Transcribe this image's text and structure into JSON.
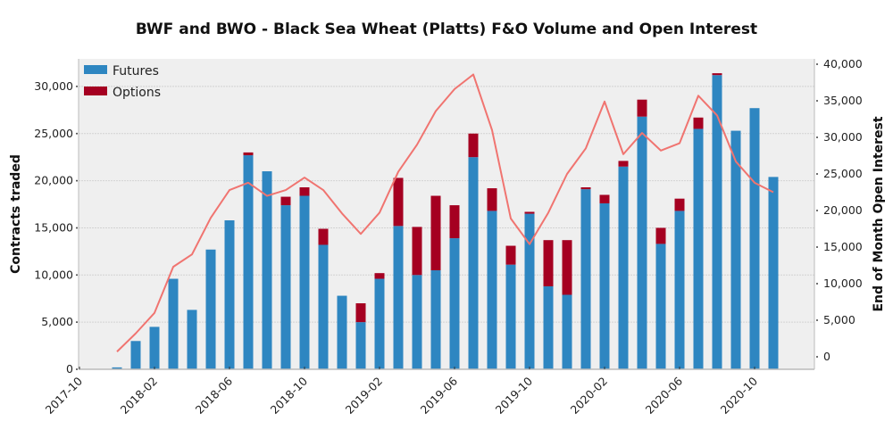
{
  "chart_data": {
    "type": "bar",
    "title": "BWF and BWO - Black Sea Wheat (Platts) F&O Volume and Open Interest",
    "xlabel": "",
    "ylabel": "Contracts traded",
    "y2label": "End of Month Open Interest",
    "ylim": [
      0,
      32500
    ],
    "y2lim": [
      -1500,
      40000
    ],
    "grid": true,
    "legend": "top-left",
    "stacked": true,
    "x_tick_labels": [
      "2017-10",
      "2018-02",
      "2018-06",
      "2018-10",
      "2019-02",
      "2019-06",
      "2019-10",
      "2020-02",
      "2020-06",
      "2020-10"
    ],
    "y_ticks": [
      0,
      5000,
      10000,
      15000,
      20000,
      25000,
      30000
    ],
    "y_tick_labels": [
      "0",
      "5,000",
      "10,000",
      "15,000",
      "20,000",
      "25,000",
      "30,000"
    ],
    "y2_ticks": [
      0,
      5000,
      10000,
      15000,
      20000,
      25000,
      30000,
      35000,
      40000
    ],
    "y2_tick_labels": [
      "0",
      "5,000",
      "10,000",
      "15,000",
      "20,000",
      "25,000",
      "30,000",
      "35,000",
      "40,000"
    ],
    "categories": [
      "2017-12",
      "2018-01",
      "2018-02",
      "2018-03",
      "2018-04",
      "2018-05",
      "2018-06",
      "2018-07",
      "2018-08",
      "2018-09",
      "2018-10",
      "2018-11",
      "2018-12",
      "2019-01",
      "2019-02",
      "2019-03",
      "2019-04",
      "2019-05",
      "2019-06",
      "2019-07",
      "2019-08",
      "2019-09",
      "2019-10",
      "2019-11",
      "2019-12",
      "2020-01",
      "2020-02",
      "2020-03",
      "2020-04",
      "2020-05",
      "2020-06",
      "2020-07",
      "2020-08",
      "2020-09",
      "2020-10",
      "2020-11"
    ],
    "series": [
      {
        "name": "Futures",
        "type": "bar",
        "axis": "left",
        "color": "#2e86c1",
        "values": [
          200,
          3000,
          4500,
          9600,
          6300,
          12700,
          15800,
          22700,
          21000,
          17400,
          18400,
          13200,
          7800,
          5000,
          9600,
          15200,
          10000,
          10500,
          13900,
          22500,
          16800,
          11100,
          16500,
          8800,
          7900,
          19100,
          17600,
          21500,
          26800,
          13300,
          16800,
          25500,
          31200,
          25300,
          27700,
          20400
        ]
      },
      {
        "name": "Options",
        "type": "bar",
        "axis": "left",
        "color": "#a50021",
        "values": [
          0,
          0,
          0,
          0,
          0,
          0,
          0,
          300,
          0,
          900,
          900,
          1700,
          0,
          2000,
          600,
          5100,
          5100,
          7900,
          3500,
          2500,
          2400,
          2000,
          200,
          4900,
          5800,
          200,
          900,
          600,
          1800,
          1700,
          1300,
          1200,
          200,
          0,
          0,
          0
        ]
      },
      {
        "name": "End of Month Open Interest",
        "type": "line",
        "axis": "right",
        "color": "#f07470",
        "values": [
          700,
          3200,
          6000,
          12300,
          14000,
          19000,
          22800,
          23800,
          22000,
          22800,
          24500,
          22800,
          19600,
          16800,
          19700,
          25300,
          29000,
          33600,
          36600,
          38600,
          31000,
          18900,
          15400,
          19700,
          25000,
          28500,
          34900,
          27700,
          30600,
          28200,
          29200,
          35700,
          33000,
          26700,
          23800,
          22500
        ]
      }
    ]
  },
  "legend": {
    "items": [
      {
        "label": "Futures",
        "color": "#2e86c1"
      },
      {
        "label": "Options",
        "color": "#a50021"
      }
    ]
  },
  "colors": {
    "plot_background": "#efefef",
    "gridline": "#d2d2d2",
    "axis": "#bbbbbb"
  }
}
